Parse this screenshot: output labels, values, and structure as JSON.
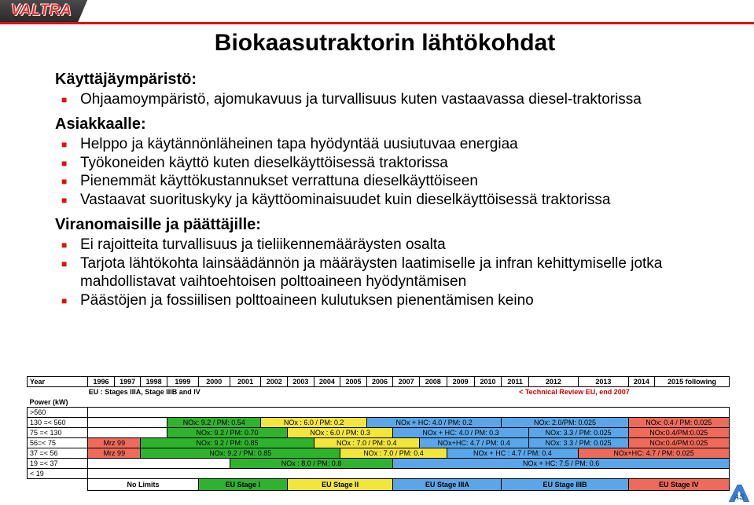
{
  "logo": "VALTRA",
  "title": "Biokaasutraktorin lähtökohdat",
  "sec1": {
    "title": "Käyttäjäympäristö:",
    "items": [
      "Ohjaamoympäristö, ajomukavuus ja turvallisuus kuten vastaavassa diesel-traktorissa"
    ]
  },
  "sec2": {
    "title": "Asiakkaalle:",
    "items": [
      "Helppo ja käytännönläheinen tapa hyödyntää uusiutuvaa energiaa",
      "Työkoneiden käyttö kuten dieselkäyttöisessä traktorissa",
      "Pienemmät käyttökustannukset verrattuna dieselkäyttöiseen",
      "Vastaavat suorituskyky ja käyttöominaisuudet kuin dieselkäyttöisessä traktorissa"
    ]
  },
  "sec3": {
    "title": "Viranomaisille ja päättäjille:",
    "items": [
      "Ei rajoitteita turvallisuus ja tieliikennemääräysten osalta",
      "Tarjota lähtökohta lainsäädännön ja määräysten laatimiselle ja infran kehittymiselle jotka mahdollistavat vaihtoehtoisen polttoaineen hyödyntämisen",
      "Päästöjen ja fossiilisen polttoaineen kulutuksen pienentämisen keino"
    ]
  },
  "chart": {
    "years": [
      "Year",
      "1996",
      "1997",
      "1998",
      "1999",
      "2000",
      "2001",
      "2002",
      "2003",
      "2004",
      "2005",
      "2006",
      "2007",
      "2008",
      "2009",
      "2010",
      "2011",
      "2012",
      "2013",
      "2014",
      "2015 following"
    ],
    "eu_title": "EU : Stages IIIA, Stage IIIB and IV",
    "tech_review": "< Technical Review EU, end 2007",
    "power_hdr": "Power (kW)",
    "rows": [
      {
        "label": ">560",
        "cells": [
          {
            "span": 20,
            "cls": "blank",
            "txt": ""
          }
        ]
      },
      {
        "label": "130 =< 560",
        "cells": [
          {
            "span": 3,
            "cls": "blank",
            "txt": ""
          },
          {
            "span": 3,
            "cls": "green",
            "txt": "NOx: 9.2 / PM: 0.54"
          },
          {
            "span": 4,
            "cls": "yellow",
            "txt": "NOx : 6.0 / PM: 0.2"
          },
          {
            "span": 5,
            "cls": "blue",
            "txt": "NOx + HC: 4.0 / PM: 0.2"
          },
          {
            "span": 3,
            "cls": "blue",
            "txt": "NOx: 2.0/PM: 0.025"
          },
          {
            "span": 2,
            "cls": "red",
            "txt": "NOx: 0.4 / PM: 0.025"
          }
        ]
      },
      {
        "label": "75 =< 130",
        "cells": [
          {
            "span": 3,
            "cls": "blank",
            "txt": ""
          },
          {
            "span": 4,
            "cls": "green",
            "txt": "NOx: 9.2 / PM: 0.70"
          },
          {
            "span": 4,
            "cls": "yellow",
            "txt": "NOx : 6.0 / PM: 0.3"
          },
          {
            "span": 5,
            "cls": "blue",
            "txt": "NOx + HC: 4.0 / PM: 0.3"
          },
          {
            "span": 2,
            "cls": "blue",
            "txt": "NOx: 3.3 / PM: 0.025"
          },
          {
            "span": 2,
            "cls": "red",
            "txt": "NOx:0.4/PM:0.025"
          }
        ]
      },
      {
        "label": "56=< 75",
        "cells": [
          {
            "span": 2,
            "cls": "red",
            "txt": "Mrz 99"
          },
          {
            "span": 6,
            "cls": "green",
            "txt": "NOx: 9.2 / PM: 0.85"
          },
          {
            "span": 4,
            "cls": "yellow",
            "txt": "NOx : 7.0 / PM: 0.4"
          },
          {
            "span": 4,
            "cls": "blue",
            "txt": "NOx+HC: 4.7 / PM: 0.4"
          },
          {
            "span": 2,
            "cls": "blue",
            "txt": "NOx: 3.3 / PM: 0.025"
          },
          {
            "span": 2,
            "cls": "red",
            "txt": "NOx:0.4/PM:0.025"
          }
        ]
      },
      {
        "label": "37 =< 56",
        "cells": [
          {
            "span": 2,
            "cls": "red",
            "txt": "Mrz 99"
          },
          {
            "span": 7,
            "cls": "green",
            "txt": "NOx: 9.2 / PM: 0.85"
          },
          {
            "span": 4,
            "cls": "yellow",
            "txt": "NOx : 7.0 / PM: 0.4"
          },
          {
            "span": 4,
            "cls": "blue",
            "txt": "NOx + HC : 4.7 / PM: 0.4"
          },
          {
            "span": 3,
            "cls": "red",
            "txt": "NOx+HC: 4.7 / PM: 0.025"
          }
        ]
      },
      {
        "label": "19 =< 37",
        "cells": [
          {
            "span": 5,
            "cls": "blank",
            "txt": ""
          },
          {
            "span": 6,
            "cls": "green",
            "txt": "NOx : 8.0 / PM: 0.8"
          },
          {
            "span": 9,
            "cls": "blue",
            "txt": "NOx + HC: 7.5 / PM: 0.6"
          }
        ]
      },
      {
        "label": "< 19",
        "cells": [
          {
            "span": 20,
            "cls": "blank",
            "txt": ""
          }
        ]
      }
    ],
    "stages": [
      "No Limits",
      "EU Stage I",
      "EU Stage II",
      "EU Stage IIIA",
      "EU Stage IIIB",
      "EU Stage IV"
    ],
    "stage_cls": [
      "blank",
      "green",
      "yellow",
      "blue",
      "blue",
      "red"
    ]
  }
}
